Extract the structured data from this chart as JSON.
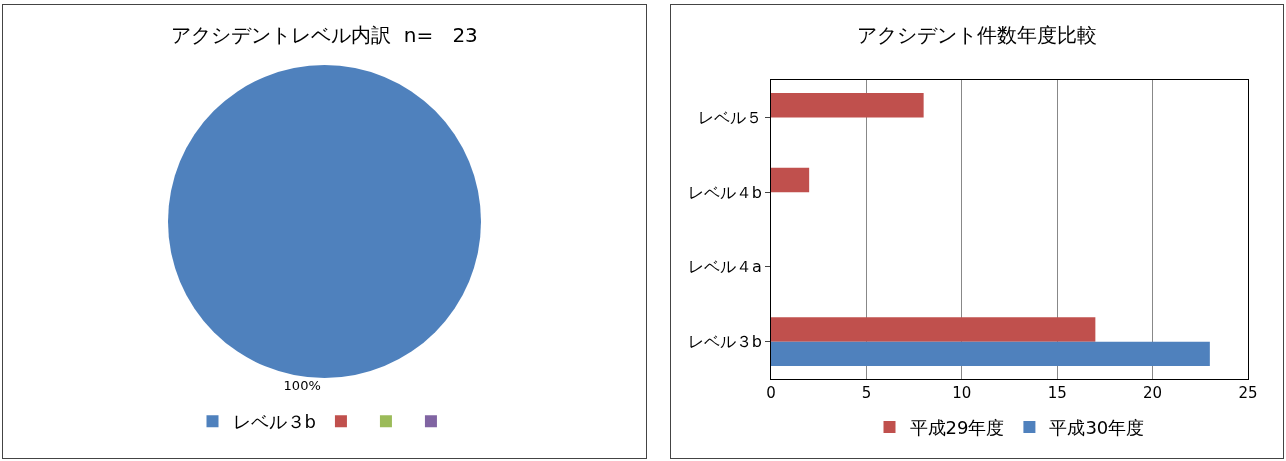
{
  "chart_data": [
    {
      "type": "pie",
      "title": "アクシデントレベル内訳  n=   23",
      "categories": [
        "レベル３b",
        null,
        null,
        null
      ],
      "values": [
        100,
        0,
        0,
        0
      ],
      "colors": [
        "#4f81bd",
        "#c0504d",
        "#9bbb59",
        "#8064a2"
      ],
      "value_labels": [
        "100%",
        null,
        null,
        null
      ],
      "legend": "bottom"
    },
    {
      "type": "bar",
      "title": "アクシデント件数年度比較",
      "orientation": "horizontal",
      "categories": [
        "レベル５",
        "レベル４b",
        "レベル４a",
        "レベル３b"
      ],
      "series": [
        {
          "name": "平成29年度",
          "color": "#c0504d",
          "values": [
            8,
            2,
            0,
            17
          ]
        },
        {
          "name": "平成30年度",
          "color": "#4f81bd",
          "values": [
            0,
            0,
            0,
            23
          ]
        }
      ],
      "xlim": [
        0,
        25
      ],
      "xticks": [
        0,
        5,
        10,
        15,
        20,
        25
      ],
      "grid": "x",
      "legend": "bottom"
    }
  ]
}
